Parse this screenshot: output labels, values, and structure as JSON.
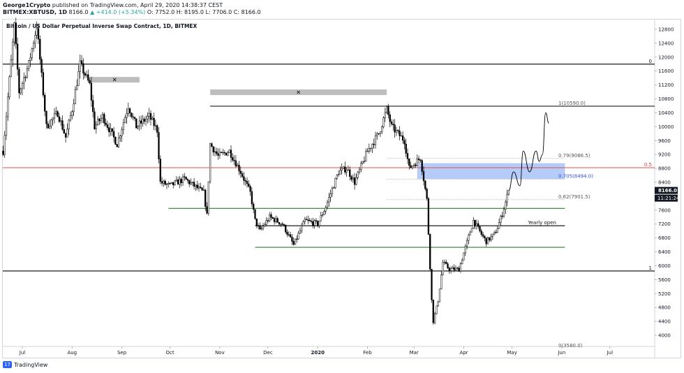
{
  "header": {
    "author": "George1Crypto",
    "published": "published on TradingView.com, April 29, 2020 14:38:37 CEST",
    "symbol": "BITMEX:XBTUSD, 1D",
    "last": "8166.0",
    "change": "▲ +414.0 (+5.34%)",
    "ohlc": "O: 7752.0  H: 8195.0  L: 7706.0  C: 8166.0"
  },
  "footer": {
    "brand": "TradingView"
  },
  "chart_data": {
    "type": "candlestick",
    "title": "Bitcoin / US Dollar Perpetual Inverse Swap Contract, 1D, BITMEX",
    "y_axis": {
      "side": "right",
      "ticks": [
        12800,
        12400,
        12000,
        11600,
        11200,
        10800,
        10400,
        10000,
        9600,
        9200,
        8800,
        8400,
        8000,
        7600,
        7200,
        6800,
        6400,
        6000,
        5600,
        5200,
        4800,
        4400,
        4000
      ],
      "price_tag": "8166.0",
      "countdown_tag": "11:21:24"
    },
    "x_axis": {
      "ticks": [
        {
          "label": "Jul",
          "date": "2019-07-01"
        },
        {
          "label": "Aug",
          "date": "2019-08-01"
        },
        {
          "label": "Sep",
          "date": "2019-09-01"
        },
        {
          "label": "Oct",
          "date": "2019-10-01"
        },
        {
          "label": "Nov",
          "date": "2019-11-01"
        },
        {
          "label": "Dec",
          "date": "2019-12-01"
        },
        {
          "label": "2020",
          "date": "2020-01-01"
        },
        {
          "label": "Feb",
          "date": "2020-02-01"
        },
        {
          "label": "Mar",
          "date": "2020-03-01"
        },
        {
          "label": "Apr",
          "date": "2020-04-01"
        },
        {
          "label": "May",
          "date": "2020-05-01"
        },
        {
          "label": "Jun",
          "date": "2020-06-01"
        },
        {
          "label": "Jul",
          "date": "2020-07-01"
        }
      ]
    },
    "price_path": [
      [
        "2019-06-19",
        9300
      ],
      [
        "2019-06-26",
        12900
      ],
      [
        "2019-06-29",
        11000
      ],
      [
        "2019-07-05",
        11800
      ],
      [
        "2019-07-10",
        12900
      ],
      [
        "2019-07-16",
        10000
      ],
      [
        "2019-07-23",
        10400
      ],
      [
        "2019-07-28",
        9700
      ],
      [
        "2019-08-01",
        10500
      ],
      [
        "2019-08-06",
        11800
      ],
      [
        "2019-08-12",
        11200
      ],
      [
        "2019-08-15",
        10000
      ],
      [
        "2019-08-20",
        10300
      ],
      [
        "2019-08-29",
        9500
      ],
      [
        "2019-09-05",
        10600
      ],
      [
        "2019-09-10",
        10000
      ],
      [
        "2019-09-18",
        10300
      ],
      [
        "2019-09-23",
        9900
      ],
      [
        "2019-09-25",
        8400
      ],
      [
        "2019-10-01",
        8300
      ],
      [
        "2019-10-10",
        8500
      ],
      [
        "2019-10-22",
        8100
      ],
      [
        "2019-10-24",
        7450
      ],
      [
        "2019-10-26",
        9500
      ],
      [
        "2019-10-31",
        9150
      ],
      [
        "2019-11-07",
        9300
      ],
      [
        "2019-11-14",
        8700
      ],
      [
        "2019-11-20",
        8100
      ],
      [
        "2019-11-23",
        7300
      ],
      [
        "2019-11-26",
        7000
      ],
      [
        "2019-12-02",
        7400
      ],
      [
        "2019-12-10",
        7200
      ],
      [
        "2019-12-17",
        6600
      ],
      [
        "2019-12-24",
        7300
      ],
      [
        "2020-01-01",
        7200
      ],
      [
        "2020-01-06",
        7700
      ],
      [
        "2020-01-14",
        8700
      ],
      [
        "2020-01-19",
        8800
      ],
      [
        "2020-01-24",
        8400
      ],
      [
        "2020-02-01",
        9300
      ],
      [
        "2020-02-08",
        9800
      ],
      [
        "2020-02-13",
        10500
      ],
      [
        "2020-02-16",
        10000
      ],
      [
        "2020-02-24",
        9600
      ],
      [
        "2020-02-27",
        8800
      ],
      [
        "2020-03-05",
        9100
      ],
      [
        "2020-03-09",
        7900
      ],
      [
        "2020-03-12",
        5000
      ],
      [
        "2020-03-13",
        4400
      ],
      [
        "2020-03-16",
        5000
      ],
      [
        "2020-03-19",
        6100
      ],
      [
        "2020-03-23",
        5900
      ],
      [
        "2020-03-29",
        5900
      ],
      [
        "2020-04-07",
        7300
      ],
      [
        "2020-04-12",
        6900
      ],
      [
        "2020-04-15",
        6700
      ],
      [
        "2020-04-20",
        6900
      ],
      [
        "2020-04-22",
        7100
      ],
      [
        "2020-04-25",
        7500
      ],
      [
        "2020-04-29",
        8166
      ]
    ],
    "projection": [
      [
        "2020-04-29",
        8166
      ],
      [
        "2020-05-02",
        8700
      ],
      [
        "2020-05-06",
        8300
      ],
      [
        "2020-05-08",
        9300
      ],
      [
        "2020-05-12",
        8700
      ],
      [
        "2020-05-16",
        9300
      ],
      [
        "2020-05-18",
        9000
      ],
      [
        "2020-05-20",
        9200
      ],
      [
        "2020-05-22",
        10400
      ],
      [
        "2020-05-24",
        10100
      ]
    ],
    "horizontal_lines": [
      {
        "price": 11800,
        "color": "#000000",
        "label": "0"
      },
      {
        "price": 10590,
        "color": "#000000",
        "label": ""
      },
      {
        "price": 8820,
        "color": "#e53935",
        "label": "0.5"
      },
      {
        "price": 7650,
        "color": "#2e7d32",
        "label": ""
      },
      {
        "price": 7150,
        "color": "#000000",
        "label": "Yearly open"
      },
      {
        "price": 6530,
        "color": "#2e7d32",
        "label": ""
      },
      {
        "price": 5850,
        "color": "#000000",
        "label": "1"
      }
    ],
    "fib_levels": [
      {
        "ratio": "1",
        "price": 10590,
        "label": "1(10590.0)"
      },
      {
        "ratio": "0.79",
        "price": 9086.5,
        "label": "0.79(9086.5)"
      },
      {
        "ratio": "0.705",
        "price": 8494.0,
        "label": "0.705(8494.0)"
      },
      {
        "ratio": "0.62",
        "price": 7901.5,
        "label": "0.62(7901.5)"
      },
      {
        "ratio": "0",
        "price": 3580,
        "label": "0(3580.0)"
      }
    ],
    "zones": [
      {
        "name": "golden-pocket",
        "from_date": "2020-03-03",
        "to_date": "2020-06-03",
        "price_low": 8494.0,
        "price_high": 8950,
        "color": "#5b8def"
      }
    ],
    "markers": [
      {
        "symbol": "×",
        "from_date": "2019-08-12",
        "to_date": "2019-09-12",
        "price": 11350
      },
      {
        "symbol": "×",
        "from_date": "2019-10-26",
        "to_date": "2020-02-13",
        "price": 10990
      }
    ],
    "colors": {
      "up": "#26a69a",
      "down": "#000000",
      "grid": "#f0f3fa"
    }
  }
}
